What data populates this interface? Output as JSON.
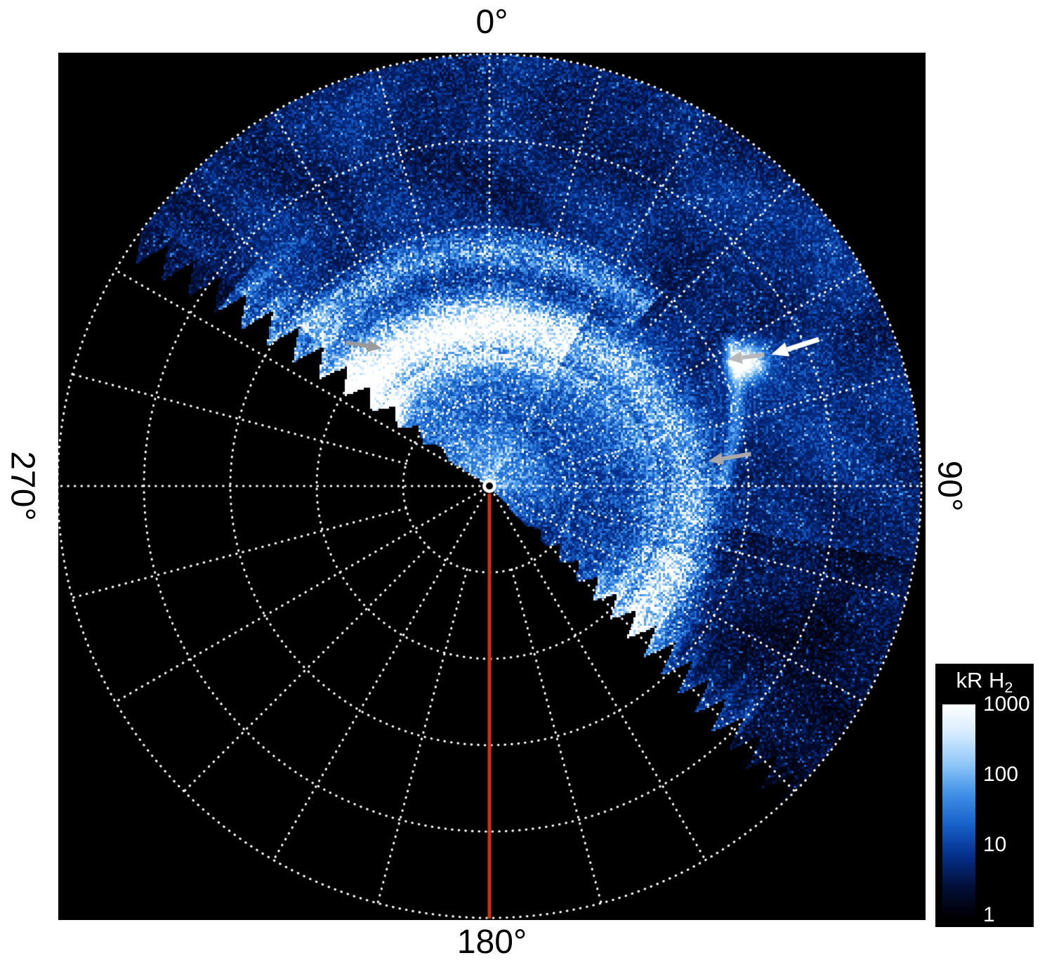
{
  "page": {
    "background": "#ffffff"
  },
  "plot": {
    "bg_color": "#000000",
    "grid_color": "#ffffff",
    "meridian_line_color": "#cc3311",
    "labels": {
      "top": "0°",
      "right": "90°",
      "bottom": "180°",
      "left": "270°"
    }
  },
  "colorbar": {
    "title_main": "kR H",
    "title_sub": "2",
    "tick_labels": [
      "1000",
      "100",
      "10",
      "1"
    ],
    "gradient": [
      "#ffffff",
      "#d4eaff",
      "#8ec6f7",
      "#3f8fe6",
      "#1760c8",
      "#05308e",
      "#02103c",
      "#000006"
    ]
  },
  "chart_data": {
    "type": "heatmap",
    "projection": "polar",
    "title": "",
    "units": "kR H2",
    "intensity_scale": {
      "type": "log",
      "min": 1,
      "max": 1000,
      "colorbar_ticks": [
        1000,
        100,
        10,
        1
      ]
    },
    "angular_labels": [
      {
        "angle_deg": 0,
        "label": "0°"
      },
      {
        "angle_deg": 90,
        "label": "90°"
      },
      {
        "angle_deg": 180,
        "label": "180°"
      },
      {
        "angle_deg": 270,
        "label": "270°"
      }
    ],
    "grid": {
      "radial_rings": 5,
      "spoke_interval_deg": 15,
      "major_spoke_interval_deg": 30,
      "style": "dotted",
      "grid_on": true
    },
    "data_sector": {
      "start_deg": -58,
      "end_deg": 138,
      "note": "observed swath with sawtooth jagged boundaries; rest of disk is black (no data)"
    },
    "meridian_marker": {
      "angle_deg": 180,
      "color": "#cc3311",
      "style": "solid line from pole to outer edge"
    },
    "features": [
      {
        "name": "main-auroral-oval",
        "type": "bright-arc",
        "radius_frac": 0.37,
        "angle_span_deg": [
          -58,
          138
        ],
        "peak_kR": 1000
      },
      {
        "name": "secondary-outer-arc",
        "type": "faint-arc",
        "radius_frac": 0.545,
        "angle_span_deg": [
          -50,
          42
        ]
      },
      {
        "name": "polar-emission-spot",
        "type": "spot",
        "angle_deg": 64,
        "radius_frac": 0.66
      },
      {
        "name": "spot-tail-arc",
        "type": "faint-arc",
        "angle_span_deg": [
          58,
          90
        ],
        "radius_frac_range": [
          0.655,
          0.53
        ]
      }
    ],
    "annotations": [
      {
        "id": "white-arrow",
        "color": "#ffffff",
        "width": 7,
        "tail": {
          "angle_deg": 66,
          "r_frac": 0.835
        },
        "tip": {
          "angle_deg": 65,
          "r_frac": 0.72
        }
      },
      {
        "id": "gray-arrow-spot",
        "color": "#b8b8b8",
        "width": 6,
        "tail": {
          "angle_deg": 64.5,
          "r_frac": 0.705
        },
        "tip": {
          "angle_deg": 62,
          "r_frac": 0.625
        }
      },
      {
        "id": "gray-arrow-mid",
        "color": "#aaaaaa",
        "width": 6,
        "tail": {
          "angle_deg": 83,
          "r_frac": 0.61
        },
        "tip": {
          "angle_deg": 83.5,
          "r_frac": 0.51
        }
      },
      {
        "id": "gray-arrow-left",
        "color": "#9a9a9a",
        "width": 6,
        "tail": {
          "angle_deg": -45,
          "r_frac": 0.47
        },
        "tip": {
          "angle_deg": -38,
          "r_frac": 0.405
        }
      }
    ]
  }
}
